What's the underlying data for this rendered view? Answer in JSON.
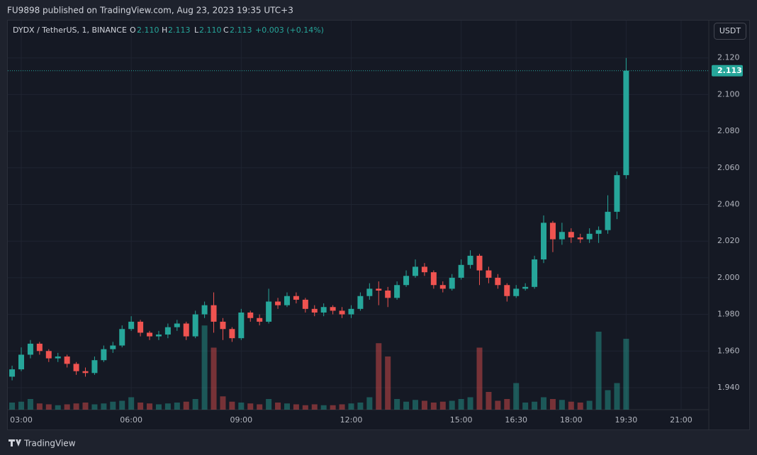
{
  "header": {
    "publisher": "FU9898 published on TradingView.com, Aug 23, 2023 19:35 UTC+3",
    "brand": "TradingView"
  },
  "chart_data": {
    "type": "candlestick",
    "legend": {
      "symbol": "DYDX / TetherUS, 1, BINANCE",
      "ohlc": [
        {
          "label": "O",
          "value": "2.110"
        },
        {
          "label": "H",
          "value": "2.113"
        },
        {
          "label": "L",
          "value": "2.110"
        },
        {
          "label": "C",
          "value": "2.113"
        }
      ],
      "change": "+0.003 (+0.14%)"
    },
    "currency": "USDT",
    "x": [
      "02:45",
      "03:00",
      "03:15",
      "03:30",
      "03:45",
      "04:00",
      "04:15",
      "04:30",
      "04:45",
      "05:00",
      "05:15",
      "05:30",
      "05:45",
      "06:00",
      "06:15",
      "06:30",
      "06:45",
      "07:00",
      "07:15",
      "07:30",
      "07:45",
      "08:00",
      "08:15",
      "08:30",
      "08:45",
      "09:00",
      "09:15",
      "09:30",
      "09:45",
      "10:00",
      "10:15",
      "10:30",
      "10:45",
      "11:00",
      "11:15",
      "11:30",
      "11:45",
      "12:00",
      "12:15",
      "12:30",
      "12:45",
      "13:00",
      "13:15",
      "13:30",
      "13:45",
      "14:00",
      "14:15",
      "14:30",
      "14:45",
      "15:00",
      "15:15",
      "15:30",
      "15:45",
      "16:00",
      "16:15",
      "16:30",
      "16:45",
      "17:00",
      "17:15",
      "17:30",
      "17:45",
      "18:00",
      "18:15",
      "18:30",
      "18:45",
      "19:00",
      "19:15",
      "19:30"
    ],
    "open": [
      1.946,
      1.95,
      1.958,
      1.964,
      1.96,
      1.956,
      1.957,
      1.953,
      1.949,
      1.948,
      1.955,
      1.961,
      1.963,
      1.972,
      1.976,
      1.97,
      1.968,
      1.969,
      1.973,
      1.975,
      1.968,
      1.98,
      1.985,
      1.976,
      1.972,
      1.967,
      1.981,
      1.978,
      1.976,
      1.987,
      1.985,
      1.99,
      1.988,
      1.983,
      1.981,
      1.984,
      1.982,
      1.98,
      1.983,
      1.99,
      1.994,
      1.993,
      1.989,
      1.996,
      2.001,
      2.006,
      2.003,
      1.996,
      1.994,
      2.0,
      2.007,
      2.012,
      2.004,
      2.0,
      1.996,
      1.99,
      1.994,
      1.995,
      2.01,
      2.03,
      2.021,
      2.025,
      2.022,
      2.021,
      2.024,
      2.026,
      2.036,
      2.056
    ],
    "high": [
      1.952,
      1.962,
      1.966,
      1.965,
      1.961,
      1.959,
      1.958,
      1.954,
      1.951,
      1.957,
      1.963,
      1.965,
      1.974,
      1.979,
      1.977,
      1.971,
      1.971,
      1.975,
      1.977,
      1.976,
      1.982,
      1.987,
      1.992,
      1.978,
      1.973,
      1.983,
      1.982,
      1.98,
      1.994,
      1.989,
      1.992,
      1.992,
      1.989,
      1.985,
      1.986,
      1.985,
      1.984,
      1.985,
      1.992,
      1.997,
      1.998,
      1.995,
      1.998,
      2.004,
      2.01,
      2.008,
      2.004,
      1.998,
      2.002,
      2.01,
      2.015,
      2.013,
      2.006,
      2.002,
      1.997,
      1.996,
      1.997,
      2.012,
      2.034,
      2.031,
      2.03,
      2.027,
      2.024,
      2.027,
      2.028,
      2.045,
      2.058,
      2.12
    ],
    "low": [
      1.944,
      1.949,
      1.956,
      1.958,
      1.954,
      1.954,
      1.951,
      1.947,
      1.946,
      1.947,
      1.954,
      1.959,
      1.962,
      1.971,
      1.968,
      1.966,
      1.966,
      1.967,
      1.971,
      1.966,
      1.967,
      1.978,
      1.97,
      1.966,
      1.965,
      1.966,
      1.976,
      1.974,
      1.975,
      1.983,
      1.984,
      1.986,
      1.981,
      1.979,
      1.979,
      1.98,
      1.978,
      1.978,
      1.982,
      1.988,
      1.985,
      1.984,
      1.988,
      1.995,
      2.0,
      2.001,
      1.994,
      1.992,
      1.993,
      1.999,
      2.005,
      1.996,
      1.997,
      1.994,
      1.987,
      1.989,
      1.993,
      1.994,
      2.008,
      2.014,
      2.018,
      2.019,
      2.019,
      2.019,
      2.019,
      2.024,
      2.032,
      2.054
    ],
    "close": [
      1.95,
      1.958,
      1.964,
      1.96,
      1.956,
      1.957,
      1.953,
      1.949,
      1.948,
      1.955,
      1.961,
      1.963,
      1.972,
      1.976,
      1.97,
      1.968,
      1.969,
      1.973,
      1.975,
      1.968,
      1.98,
      1.985,
      1.976,
      1.972,
      1.967,
      1.981,
      1.978,
      1.976,
      1.987,
      1.985,
      1.99,
      1.988,
      1.983,
      1.981,
      1.984,
      1.982,
      1.98,
      1.983,
      1.99,
      1.994,
      1.993,
      1.989,
      1.996,
      2.001,
      2.006,
      2.003,
      1.996,
      1.994,
      2.0,
      2.007,
      2.012,
      2.004,
      2.0,
      1.996,
      1.99,
      1.994,
      1.995,
      2.01,
      2.03,
      2.021,
      2.025,
      2.022,
      2.021,
      2.024,
      2.026,
      2.036,
      2.056,
      2.113
    ],
    "volume": [
      8,
      9,
      12,
      7,
      6,
      5,
      6,
      7,
      8,
      6,
      7,
      9,
      10,
      14,
      8,
      7,
      6,
      7,
      8,
      9,
      12,
      95,
      70,
      15,
      9,
      8,
      7,
      6,
      12,
      8,
      7,
      6,
      5,
      6,
      5,
      5,
      6,
      7,
      8,
      14,
      75,
      60,
      12,
      9,
      11,
      10,
      8,
      9,
      10,
      12,
      14,
      70,
      20,
      10,
      12,
      30,
      8,
      9,
      14,
      12,
      11,
      9,
      8,
      10,
      88,
      22,
      30,
      80
    ],
    "colors": {
      "up": "#26a69a",
      "down": "#ef5350"
    },
    "ylim": [
      1.928,
      2.14
    ],
    "yticks": [
      {
        "value": 1.94,
        "label": "1.940"
      },
      {
        "value": 1.96,
        "label": "1.960"
      },
      {
        "value": 1.98,
        "label": "1.980"
      },
      {
        "value": 2.0,
        "label": "2.000"
      },
      {
        "value": 2.02,
        "label": "2.020"
      },
      {
        "value": 2.04,
        "label": "2.040"
      },
      {
        "value": 2.06,
        "label": "2.060"
      },
      {
        "value": 2.08,
        "label": "2.080"
      },
      {
        "value": 2.1,
        "label": "2.100"
      },
      {
        "value": 2.12,
        "label": "2.120"
      }
    ],
    "xticks": [
      "03:00",
      "06:00",
      "09:00",
      "12:00",
      "15:00",
      "16:30",
      "18:00",
      "19:30",
      "21:00"
    ],
    "last_price": {
      "value": 2.113,
      "label": "2.113"
    },
    "grid": true
  }
}
